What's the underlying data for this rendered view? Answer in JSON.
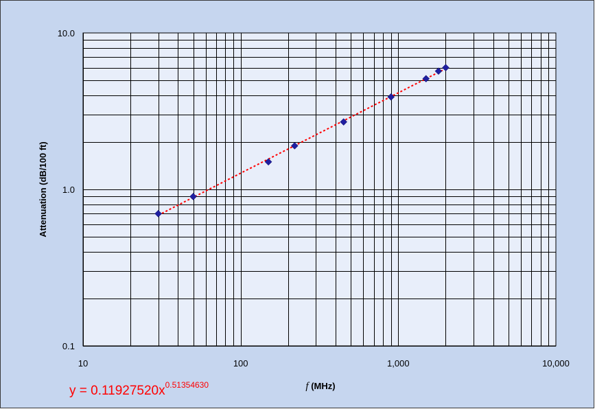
{
  "chart_data": {
    "type": "scatter",
    "xscale": "log",
    "yscale": "log",
    "xlim": [
      10,
      10000
    ],
    "ylim": [
      0.1,
      10
    ],
    "xticks": [
      10,
      100,
      1000,
      10000
    ],
    "xtick_labels": [
      "10",
      "100",
      "1,000",
      "10,000"
    ],
    "yticks": [
      0.1,
      1,
      10
    ],
    "ytick_labels": [
      "0.1",
      "1.0",
      "10.0"
    ],
    "xlabel_var": "f",
    "xlabel_unit": " (MHz)",
    "ylabel": "Attenuation (dB/100 ft)",
    "grid": true,
    "series": [
      {
        "x": [
          30,
          50,
          150,
          220,
          450,
          900,
          1500,
          1800,
          2000
        ],
        "y": [
          0.7,
          0.9,
          1.5,
          1.9,
          2.7,
          3.9,
          5.1,
          5.7,
          6.0
        ],
        "marker": "diamond",
        "color": "#1f1fa0"
      }
    ],
    "trendline": {
      "type": "power",
      "coefficient": 0.1192752,
      "exponent": 0.5135463,
      "color": "#ff0000",
      "style": "dotted",
      "equation_prefix": "y = 0.11927520x",
      "equation_exponent": "0.51354630"
    }
  },
  "colors": {
    "frame_background": "#c6d6ef",
    "plot_background": "#e8eefa",
    "gridline": "#000000",
    "marker": "#1f1fa0",
    "trendline": "#ff0000"
  }
}
